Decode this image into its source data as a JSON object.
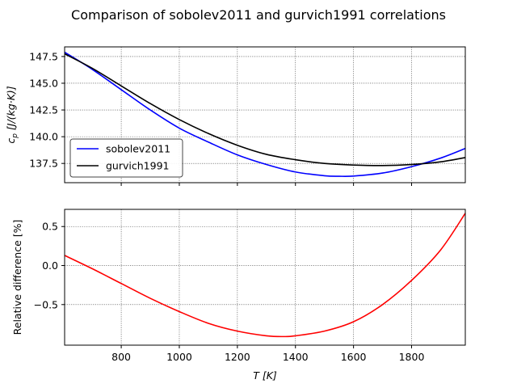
{
  "title": "Comparison of sobolev2011 and gurvich1991 correlations",
  "chart_data": [
    {
      "type": "line",
      "title": "",
      "xlabel": "",
      "ylabel": "c_p [J/(kg·K)]",
      "ylabel_parts": {
        "main": "c",
        "sub": "p",
        "unit": " [J/(kg·K)]"
      },
      "xlim": [
        605,
        1985
      ],
      "ylim": [
        135.7,
        148.4
      ],
      "xticks": [
        800,
        1000,
        1200,
        1400,
        1600,
        1800
      ],
      "yticks": [
        137.5,
        140.0,
        142.5,
        145.0,
        147.5
      ],
      "ytick_labels": [
        "137.5",
        "140.0",
        "142.5",
        "145.0",
        "147.5"
      ],
      "grid": true,
      "legend": "lower-left",
      "series": [
        {
          "name": "sobolev2011",
          "color": "#0000ff",
          "x": [
            605,
            700,
            800,
            900,
            1000,
            1100,
            1200,
            1300,
            1400,
            1500,
            1550,
            1600,
            1700,
            1800,
            1900,
            1985
          ],
          "values": [
            147.9,
            146.3,
            144.4,
            142.5,
            140.8,
            139.5,
            138.3,
            137.4,
            136.7,
            136.35,
            136.3,
            136.32,
            136.6,
            137.2,
            138.0,
            138.9
          ]
        },
        {
          "name": "gurvich1991",
          "color": "#000000",
          "x": [
            605,
            700,
            800,
            900,
            1000,
            1100,
            1200,
            1300,
            1400,
            1500,
            1600,
            1700,
            1800,
            1900,
            1985
          ],
          "values": [
            147.75,
            146.4,
            144.75,
            143.1,
            141.6,
            140.3,
            139.2,
            138.35,
            137.85,
            137.5,
            137.35,
            137.3,
            137.4,
            137.65,
            138.05
          ]
        }
      ]
    },
    {
      "type": "line",
      "title": "",
      "xlabel": "T [K]",
      "xlabel_parts": {
        "main": "T",
        "unit": " [K]"
      },
      "ylabel": "Relative difference [%]",
      "xlim": [
        605,
        1985
      ],
      "ylim": [
        -1.02,
        0.72
      ],
      "xticks": [
        800,
        1000,
        1200,
        1400,
        1600,
        1800
      ],
      "xtick_labels": [
        "800",
        "1000",
        "1200",
        "1400",
        "1600",
        "1800"
      ],
      "yticks": [
        -0.5,
        0.0,
        0.5
      ],
      "ytick_labels": [
        "−0.5",
        "0.0",
        "0.5"
      ],
      "grid": true,
      "series": [
        {
          "color": "#ff0000",
          "x": [
            605,
            700,
            800,
            900,
            1000,
            1100,
            1200,
            1300,
            1360,
            1400,
            1500,
            1600,
            1700,
            1800,
            1900,
            1985
          ],
          "values": [
            0.13,
            -0.04,
            -0.23,
            -0.42,
            -0.59,
            -0.74,
            -0.84,
            -0.9,
            -0.91,
            -0.9,
            -0.84,
            -0.72,
            -0.5,
            -0.19,
            0.2,
            0.67
          ]
        }
      ]
    }
  ]
}
